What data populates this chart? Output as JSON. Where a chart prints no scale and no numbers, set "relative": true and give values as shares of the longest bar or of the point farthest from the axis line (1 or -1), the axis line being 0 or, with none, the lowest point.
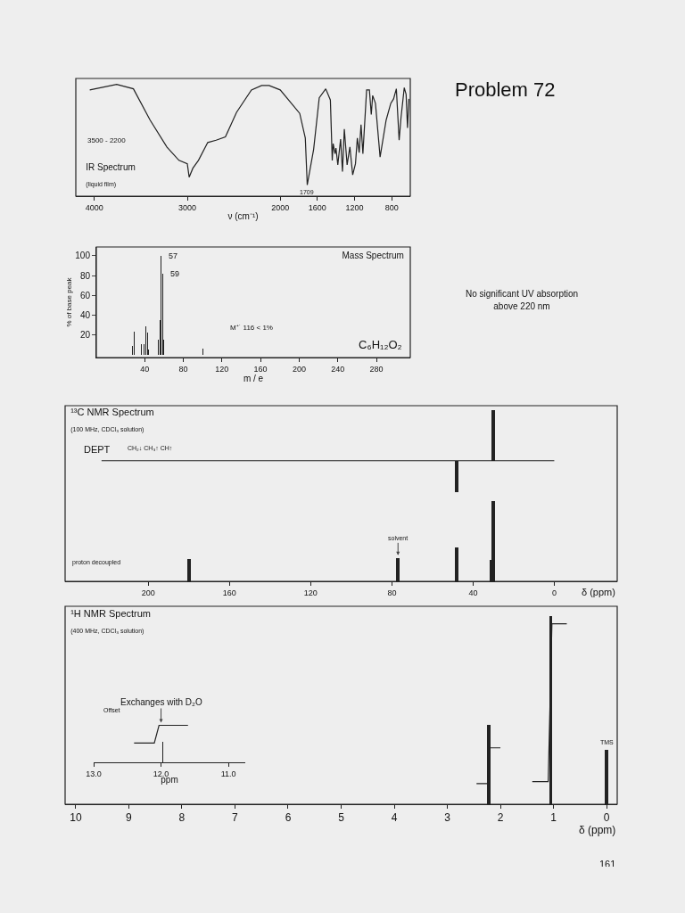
{
  "chart_data": [
    {
      "type": "line",
      "title": "IR Spectrum",
      "subtitle": "(liquid film)",
      "xlabel": "ν (cm⁻¹)",
      "relative": true,
      "xlim": [
        4200,
        600
      ],
      "xticks": [
        4000,
        3000,
        2000,
        1600,
        1200,
        800
      ],
      "annotations": [
        "3500 - 2200",
        {
          "text": "1709",
          "x": 1709,
          "y": 0.1
        }
      ],
      "series": [
        {
          "color": "#222222",
          "x": [
            4050,
            3760,
            3580,
            3400,
            3220,
            3090,
            3000,
            2980,
            2940,
            2880,
            2780,
            2690,
            2590,
            2470,
            2310,
            2200,
            2120,
            2000,
            1880,
            1790,
            1730,
            1709,
            1640,
            1580,
            1510,
            1460,
            1440,
            1430,
            1410,
            1400,
            1380,
            1350,
            1330,
            1310,
            1280,
            1250,
            1220,
            1190,
            1170,
            1150,
            1130,
            1110,
            1070,
            1040,
            1020,
            1005,
            975,
            925,
            860,
            810,
            780,
            750,
            720,
            700,
            665,
            645,
            630,
            615
          ],
          "values": [
            0.95,
            1.0,
            0.96,
            0.68,
            0.44,
            0.32,
            0.29,
            0.17,
            0.25,
            0.32,
            0.48,
            0.5,
            0.53,
            0.75,
            0.95,
            0.99,
            0.99,
            0.95,
            0.83,
            0.74,
            0.52,
            0.1,
            0.42,
            0.88,
            0.96,
            0.86,
            0.32,
            0.47,
            0.38,
            0.43,
            0.28,
            0.51,
            0.22,
            0.6,
            0.28,
            0.44,
            0.19,
            0.29,
            0.52,
            0.39,
            0.64,
            0.38,
            0.95,
            0.95,
            0.73,
            0.9,
            0.83,
            0.35,
            0.68,
            0.83,
            0.87,
            0.96,
            0.5,
            0.7,
            0.97,
            0.91,
            0.61,
            0.87
          ]
        }
      ]
    },
    {
      "type": "other",
      "title": "Problem 72",
      "annotations": [
        "No significant UV absorption above 220 nm"
      ]
    },
    {
      "type": "bar",
      "title": "Mass Spectrum",
      "xlabel": "m / e",
      "ylabel": "% of base peak",
      "xlim": [
        -10,
        315
      ],
      "xticks": [
        40,
        80,
        120,
        160,
        200,
        240,
        280
      ],
      "ylim": [
        -3,
        109
      ],
      "yticks": [
        20,
        40,
        60,
        80,
        100
      ],
      "color": "#222222",
      "x": [
        27,
        29,
        37,
        39,
        41,
        43,
        44,
        54,
        56,
        57,
        59,
        60,
        100
      ],
      "values": [
        9,
        23,
        11,
        11,
        29,
        22,
        5,
        15,
        35,
        100,
        82,
        15,
        6
      ],
      "annotations": [
        "M⁺˙ 116 < 1%",
        "C₆H₁₂O₂",
        {
          "text": "57",
          "x": 57,
          "y": 100
        },
        {
          "text": "59",
          "x": 59,
          "y": 82
        }
      ]
    },
    {
      "type": "bar",
      "title": "¹³C NMR Spectrum",
      "subtitle": "(100 MHz, CDCl₃ solution)",
      "relative": true,
      "tick_labels": false,
      "xlim": [
        241,
        -31
      ],
      "color": "#222222",
      "x": [
        48,
        30
      ],
      "values": [
        -0.62,
        1
      ],
      "annotations": [
        "DEPT",
        "CH₂↓ CH₃↑ CH↑"
      ]
    },
    {
      "type": "bar",
      "xlabel": "δ (ppm)",
      "relative": true,
      "tick_labels": "x",
      "xlim": [
        241,
        -31
      ],
      "xticks": [
        200,
        160,
        120,
        80,
        40,
        0
      ],
      "color": "#222222",
      "x": [
        180,
        77,
        48,
        31,
        30
      ],
      "values": [
        0.28,
        0.29,
        0.42,
        0.27,
        1
      ],
      "annotations": [
        "proton decoupled",
        {
          "text": "solvent",
          "x": 77,
          "y": 0.29
        }
      ]
    },
    {
      "type": "bar",
      "title": "¹H NMR Spectrum",
      "subtitle": "(400 MHz, CDCl₃ solution)",
      "xlabel": "δ (ppm)",
      "relative": true,
      "xlim": [
        10.2,
        -0.2
      ],
      "xticks": [
        10,
        9,
        8,
        7,
        6,
        5,
        4,
        3,
        2,
        1,
        0
      ],
      "series": [
        {
          "color": "#222222",
          "x": [
            2.22,
            1.05,
            0
          ],
          "values": [
            0.42,
            1,
            0.29
          ]
        },
        {
          "type": "line",
          "color": "#222222",
          "x": [
            2.45,
            2.24,
            2.2,
            2.0
          ],
          "values": [
            0.11,
            0.11,
            0.3,
            0.3
          ]
        },
        {
          "type": "line",
          "color": "#222222",
          "x": [
            1.4,
            1.1,
            1.03,
            0.75
          ],
          "values": [
            0.12,
            0.12,
            0.96,
            0.96
          ]
        }
      ],
      "annotations": [
        {
          "text": "TMS",
          "x": 0,
          "y": 0.29
        },
        "161"
      ]
    },
    {
      "type": "bar",
      "xlabel": "ppm",
      "relative": true,
      "xlim": [
        13.0,
        10.75
      ],
      "xticks": [
        {
          "value": 13,
          "label": "13.0"
        },
        {
          "value": 12,
          "label": "12.0"
        },
        {
          "value": 11,
          "label": "11.0"
        }
      ],
      "series": [
        {
          "color": "#222222",
          "x": [
            11.98
          ],
          "values": [
            0.55
          ]
        },
        {
          "type": "line",
          "color": "#222222",
          "x": [
            12.4,
            12.1,
            12.03,
            11.6
          ],
          "values": [
            0.52,
            0.52,
            1,
            1
          ]
        }
      ],
      "annotations": [
        "Offset",
        {
          "text": "Exchanges with D₂O",
          "x": 12.0,
          "y": 1
        }
      ]
    }
  ]
}
